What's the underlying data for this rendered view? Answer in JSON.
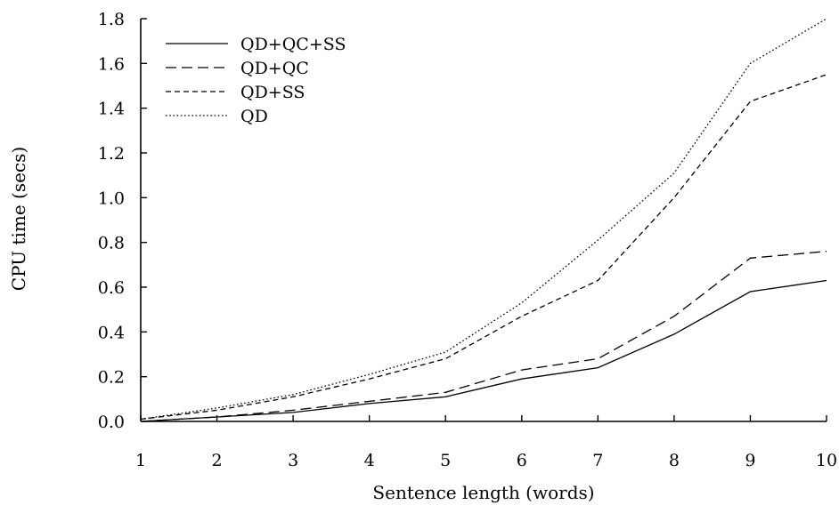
{
  "chart_data": {
    "type": "line",
    "title": "",
    "xlabel": "Sentence length (words)",
    "ylabel": "CPU time (secs)",
    "x": [
      1,
      2,
      3,
      4,
      5,
      6,
      7,
      8,
      9,
      10
    ],
    "xticks": [
      "1",
      "2",
      "3",
      "4",
      "5",
      "6",
      "7",
      "8",
      "9",
      "10"
    ],
    "yticks": [
      "0.0",
      "0.2",
      "0.4",
      "0.6",
      "0.8",
      "1.0",
      "1.2",
      "1.4",
      "1.6",
      "1.8"
    ],
    "xlim": [
      1,
      10
    ],
    "ylim": [
      0,
      1.8
    ],
    "grid": false,
    "legend_position": "top-left",
    "series": [
      {
        "name": "QD+QC+SS",
        "style": "solid",
        "values": [
          0.0,
          0.02,
          0.04,
          0.08,
          0.11,
          0.19,
          0.24,
          0.39,
          0.58,
          0.63
        ]
      },
      {
        "name": "QD+QC",
        "style": "long-dash",
        "values": [
          0.0,
          0.02,
          0.05,
          0.09,
          0.13,
          0.23,
          0.28,
          0.47,
          0.73,
          0.76
        ]
      },
      {
        "name": "QD+SS",
        "style": "short-dash",
        "values": [
          0.01,
          0.05,
          0.11,
          0.19,
          0.28,
          0.47,
          0.63,
          1.0,
          1.43,
          1.55
        ]
      },
      {
        "name": "QD",
        "style": "dotted",
        "values": [
          0.01,
          0.06,
          0.12,
          0.21,
          0.31,
          0.53,
          0.81,
          1.11,
          1.6,
          1.8
        ]
      }
    ]
  }
}
